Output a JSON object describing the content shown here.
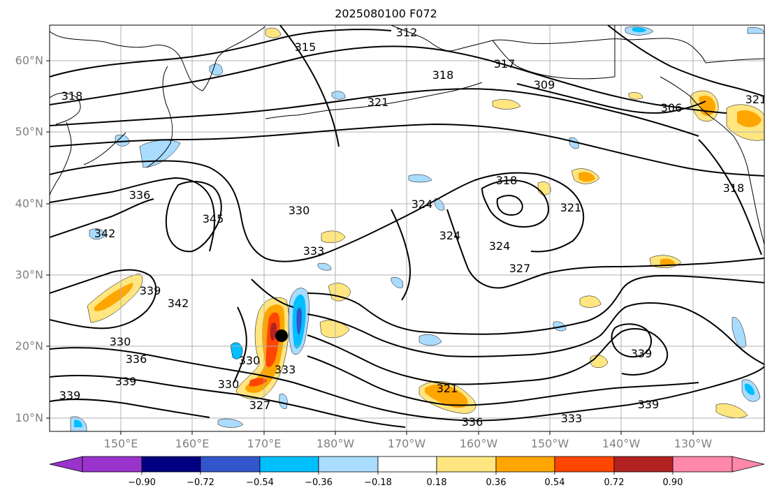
{
  "title": "2025080100 F072",
  "lat_ticks": [
    "60°N",
    "50°N",
    "40°N",
    "30°N",
    "20°N",
    "10°N"
  ],
  "lon_ticks": [
    "150°E",
    "160°E",
    "170°E",
    "180°W",
    "170°W",
    "160°W",
    "150°W",
    "140°W",
    "130°W"
  ],
  "contour_labels": [
    "312",
    "315",
    "318",
    "321",
    "318",
    "317",
    "309",
    "306",
    "321",
    "318",
    "324",
    "321",
    "324",
    "327",
    "330",
    "333",
    "324",
    "318",
    "336",
    "345",
    "342",
    "339",
    "342",
    "330",
    "336",
    "339",
    "330",
    "330",
    "333",
    "327",
    "321",
    "336",
    "333",
    "339",
    "339",
    "339"
  ],
  "colorbar": {
    "tick_labels": [
      "−0.90",
      "−0.72",
      "−0.54",
      "−0.36",
      "−0.18",
      "0.18",
      "0.36",
      "0.54",
      "0.72",
      "0.90"
    ],
    "colors": [
      "#9933cc",
      "#000080",
      "#3355cc",
      "#00bfff",
      "#aadcff",
      "#ffffff",
      "#ffe680",
      "#ffa500",
      "#ff4500",
      "#b22222",
      "#ff88aa"
    ]
  },
  "shading_colors": {
    "pos_light": "#ffe680",
    "pos_med": "#ffa500",
    "pos_strong": "#ff4500",
    "pos_max": "#b22222",
    "neg_light": "#aadcff",
    "neg_med": "#00bfff",
    "neg_strong": "#3355cc"
  },
  "marker": "storm-center-dot"
}
